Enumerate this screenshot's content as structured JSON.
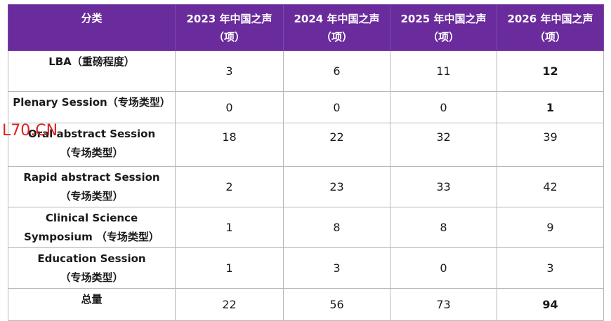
{
  "table": {
    "headers": [
      {
        "line1": "分类",
        "line2": ""
      },
      {
        "line1": "2023 年中国之声",
        "line2": "（项）"
      },
      {
        "line1": "2024 年中国之声",
        "line2": "（项）"
      },
      {
        "line1": "2025 年中国之声",
        "line2": "（项）"
      },
      {
        "line1": "2026 年中国之声",
        "line2": "（项）"
      }
    ],
    "rows": [
      {
        "line1": "LBA（重磅程度）",
        "line2": "",
        "values": [
          "3",
          "6",
          "11",
          "12"
        ]
      },
      {
        "line1": "Plenary Session（专场类型）",
        "line2": "",
        "values": [
          "0",
          "0",
          "0",
          "1"
        ]
      },
      {
        "line1": "Oral abstract Session",
        "line2": "（专场类型）",
        "values": [
          "18",
          "22",
          "32",
          "39"
        ]
      },
      {
        "line1": "Rapid abstract Session",
        "line2": "（专场类型）",
        "values": [
          "2",
          "23",
          "33",
          "42"
        ]
      },
      {
        "line1": "Clinical Science",
        "line2": "Symposium （专场类型）",
        "values": [
          "1",
          "8",
          "8",
          "9"
        ]
      },
      {
        "line1": "Education Session",
        "line2": "（专场类型）",
        "values": [
          "1",
          "3",
          "0",
          "3"
        ]
      },
      {
        "line1": "总量",
        "line2": "",
        "values": [
          "22",
          "56",
          "73",
          "94"
        ]
      }
    ]
  },
  "watermark": "L70.CN",
  "colors": {
    "header_bg": "#6a2b9c",
    "header_text": "#ffffff",
    "watermark": "#e02020"
  }
}
